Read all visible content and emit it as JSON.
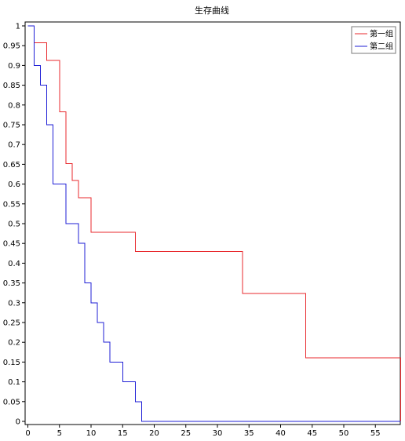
{
  "chart_data": {
    "type": "line",
    "step": true,
    "title": "生存曲线",
    "xlabel": "",
    "ylabel": "",
    "xlim": [
      0,
      59
    ],
    "ylim": [
      0,
      1
    ],
    "grid": false,
    "legend_position": "top-right",
    "x_ticks": [
      "0",
      "5",
      "10",
      "15",
      "20",
      "25",
      "30",
      "35",
      "40",
      "45",
      "50",
      "55"
    ],
    "x_tick_values": [
      0,
      5,
      10,
      15,
      20,
      25,
      30,
      35,
      40,
      45,
      50,
      55
    ],
    "y_ticks": [
      "0",
      "0.05",
      "0.1",
      "0.15",
      "0.2",
      "0.25",
      "0.3",
      "0.35",
      "0.4",
      "0.45",
      "0.5",
      "0.55",
      "0.6",
      "0.65",
      "0.7",
      "0.75",
      "0.8",
      "0.85",
      "0.9",
      "0.95",
      "1"
    ],
    "y_tick_values": [
      0,
      0.05,
      0.1,
      0.15,
      0.2,
      0.25,
      0.3,
      0.35,
      0.4,
      0.45,
      0.5,
      0.55,
      0.6,
      0.65,
      0.7,
      0.75,
      0.8,
      0.85,
      0.9,
      0.95,
      1
    ],
    "series": [
      {
        "name": "第一组",
        "color": "#e8292d",
        "x": [
          0,
          1,
          3,
          5,
          6,
          7,
          8,
          10,
          17,
          34,
          44,
          59
        ],
        "y": [
          1,
          0.957,
          0.913,
          0.783,
          0.652,
          0.609,
          0.565,
          0.478,
          0.43,
          0.323,
          0.161,
          0
        ]
      },
      {
        "name": "第二组",
        "color": "#1f1fd6",
        "x": [
          0,
          1,
          2,
          3,
          4,
          6,
          8,
          9,
          10,
          11,
          12,
          13,
          15,
          17,
          18,
          59
        ],
        "y": [
          1,
          0.9,
          0.85,
          0.75,
          0.6,
          0.5,
          0.45,
          0.35,
          0.3,
          0.25,
          0.2,
          0.15,
          0.1,
          0.05,
          0,
          0
        ]
      }
    ]
  }
}
